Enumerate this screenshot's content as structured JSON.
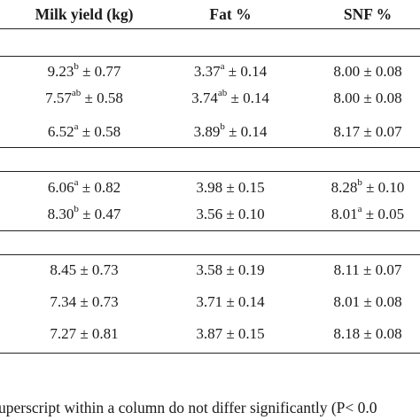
{
  "table": {
    "headers": [
      "Milk yield (kg)",
      "Fat %",
      "SNF %"
    ],
    "groups": [
      {
        "rows": [
          [
            {
              "value": "9.23",
              "sup": "b",
              "err": "± 0.77"
            },
            {
              "value": "3.37",
              "sup": "a",
              "err": "± 0.14"
            },
            {
              "value": "8.00",
              "sup": "",
              "err": "± 0.08"
            }
          ],
          [
            {
              "value": "7.57",
              "sup": "ab",
              "err": "± 0.58"
            },
            {
              "value": "3.74",
              "sup": "ab",
              "err": "± 0.14"
            },
            {
              "value": "8.00",
              "sup": "",
              "err": "± 0.08"
            }
          ],
          [
            {
              "value": "6.52",
              "sup": "a",
              "err": "± 0.58"
            },
            {
              "value": "3.89",
              "sup": "b",
              "err": "± 0.14"
            },
            {
              "value": "8.17",
              "sup": "",
              "err": "± 0.07"
            }
          ]
        ]
      },
      {
        "rows": [
          [
            {
              "value": "6.06",
              "sup": "a",
              "err": "± 0.82"
            },
            {
              "value": "3.98",
              "sup": "",
              "err": "± 0.15"
            },
            {
              "value": "8.28",
              "sup": "b",
              "err": "± 0.10"
            }
          ],
          [
            {
              "value": "8.30",
              "sup": "b",
              "err": "± 0.47"
            },
            {
              "value": "3.56",
              "sup": "",
              "err": "± 0.10"
            },
            {
              "value": "8.01",
              "sup": "a",
              "err": "± 0.05"
            }
          ]
        ]
      },
      {
        "rows": [
          [
            {
              "value": "8.45",
              "sup": "",
              "err": "± 0.73"
            },
            {
              "value": "3.58",
              "sup": "",
              "err": "± 0.19"
            },
            {
              "value": "8.11",
              "sup": "",
              "err": "± 0.07"
            }
          ],
          [
            {
              "value": "7.34",
              "sup": "",
              "err": "± 0.73"
            },
            {
              "value": "3.71",
              "sup": "",
              "err": "± 0.14"
            },
            {
              "value": "8.01",
              "sup": "",
              "err": "± 0.08"
            }
          ],
          [
            {
              "value": "7.27",
              "sup": "",
              "err": "± 0.81"
            },
            {
              "value": "3.87",
              "sup": "",
              "err": "± 0.15"
            },
            {
              "value": "8.18",
              "sup": "",
              "err": "± 0.08"
            }
          ]
        ]
      }
    ],
    "footnote": "uperscript within a column do not differ significantly (P< 0.0"
  }
}
